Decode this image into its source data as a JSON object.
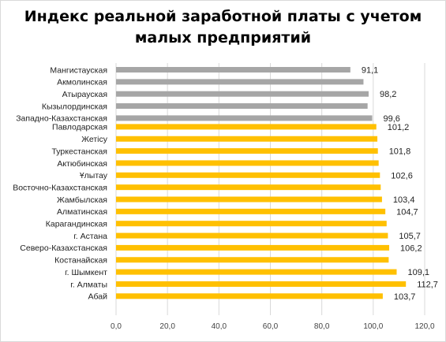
{
  "chart_data": {
    "type": "bar",
    "orientation": "horizontal",
    "title": "Индекс реальной заработной платы с учетом\nмалых предприятий",
    "xlim": [
      0,
      120
    ],
    "x_ticks": [
      "0,0",
      "20,0",
      "40,0",
      "60,0",
      "80,0",
      "100,0",
      "120,0"
    ],
    "gridlines": true,
    "legend": "none",
    "colors": {
      "group1": "#a6a6a6",
      "group2": "#ffc000"
    },
    "groups": [
      {
        "color_key": "group1",
        "bars": [
          {
            "category": "Мангистауская",
            "value": 91.1,
            "label": "91,1"
          },
          {
            "category": "Акмолинская",
            "value": 96.2,
            "label": ""
          },
          {
            "category": "Атырауская",
            "value": 98.2,
            "label": "98,2"
          },
          {
            "category": "Кызылординская",
            "value": 97.8,
            "label": ""
          },
          {
            "category": "Западно-Казахстанская",
            "value": 99.6,
            "label": "99,6"
          }
        ]
      },
      {
        "color_key": "group2",
        "bars": [
          {
            "category": "Павлодарская",
            "value": 101.2,
            "label": "101,2"
          },
          {
            "category": "Жетісу",
            "value": 101.6,
            "label": ""
          },
          {
            "category": "Туркестанская",
            "value": 101.8,
            "label": "101,8"
          },
          {
            "category": "Актюбинская",
            "value": 102.1,
            "label": ""
          },
          {
            "category": "Ұлытау",
            "value": 102.6,
            "label": "102,6"
          },
          {
            "category": "Восточно-Казахстанская",
            "value": 102.9,
            "label": ""
          },
          {
            "category": "Жамбылская",
            "value": 103.4,
            "label": "103,4"
          },
          {
            "category": "Алматинская",
            "value": 104.7,
            "label": "104,7"
          },
          {
            "category": "Карагандинская",
            "value": 105.2,
            "label": ""
          },
          {
            "category": "г. Астана",
            "value": 105.7,
            "label": "105,7"
          },
          {
            "category": "Северо-Казахстанская",
            "value": 106.2,
            "label": "106,2"
          },
          {
            "category": "Костанайская",
            "value": 106.0,
            "label": ""
          },
          {
            "category": "г. Шымкент",
            "value": 109.1,
            "label": "109,1"
          },
          {
            "category": "г. Алматы",
            "value": 112.7,
            "label": "112,7"
          },
          {
            "category": "Абай",
            "value": 103.7,
            "label": "103,7"
          }
        ]
      }
    ]
  }
}
